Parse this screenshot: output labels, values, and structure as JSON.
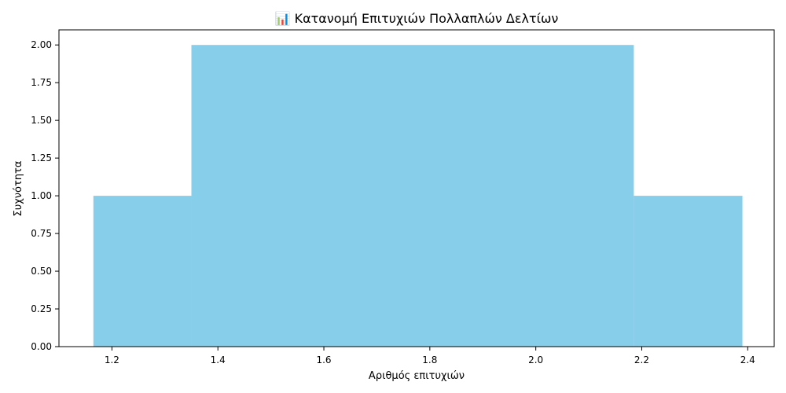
{
  "chart_data": {
    "type": "bar",
    "title": "📊 Κατανομή Επιτυχιών Πολλαπλών Δελτίων",
    "xlabel": "Αριθμός επιτυχιών",
    "ylabel": "Συχνότητα",
    "bin_edges": [
      1.165,
      1.35,
      2.185,
      2.39
    ],
    "values": [
      1,
      2,
      1
    ],
    "xlim": [
      1.1,
      2.45
    ],
    "ylim": [
      0,
      2.1
    ],
    "x_ticks": [
      1.2,
      1.4,
      1.6,
      1.8,
      2.0,
      2.2,
      2.4
    ],
    "x_tick_labels": [
      "1.2",
      "1.4",
      "1.6",
      "1.8",
      "2.0",
      "2.2",
      "2.4"
    ],
    "y_ticks": [
      0,
      0.25,
      0.5,
      0.75,
      1.0,
      1.25,
      1.5,
      1.75,
      2.0
    ],
    "y_tick_labels": [
      "0.00",
      "0.25",
      "0.50",
      "0.75",
      "1.00",
      "1.25",
      "1.50",
      "1.75",
      "2.00"
    ],
    "bar_color": "#87CEEB",
    "grid": false,
    "legend": "none"
  }
}
